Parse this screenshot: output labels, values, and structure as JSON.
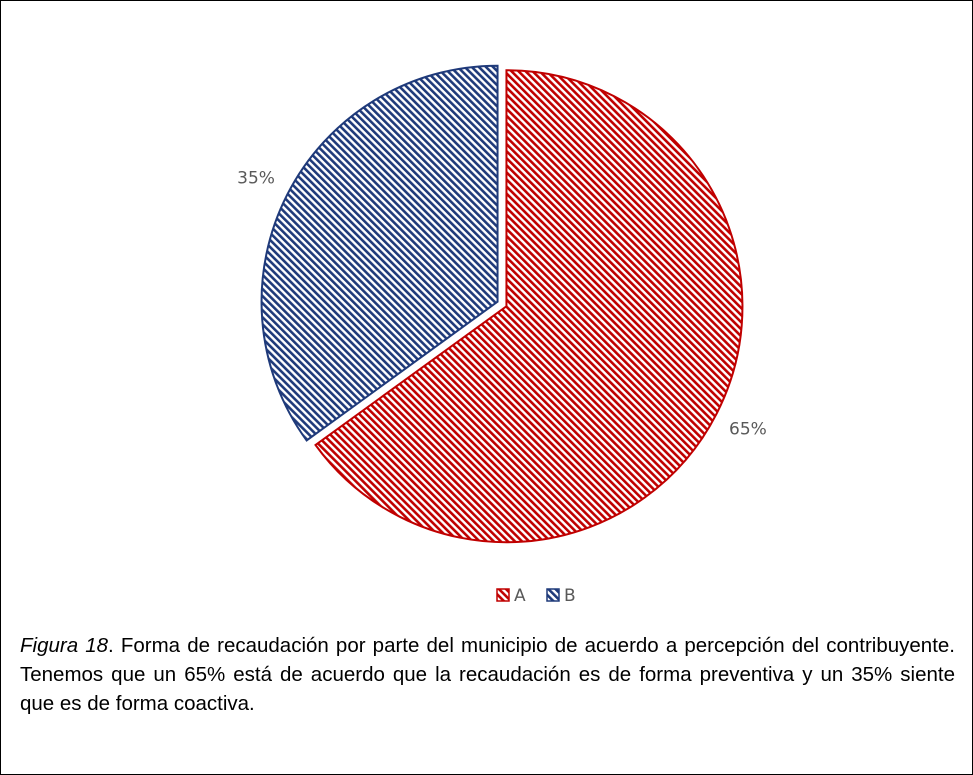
{
  "chart_data": {
    "type": "pie",
    "categories": [
      "A",
      "B"
    ],
    "values": [
      65,
      35
    ],
    "value_labels": [
      "65%",
      "35%"
    ],
    "colors": [
      "#c00000",
      "#1f3a7a"
    ],
    "legend": "bottom"
  },
  "caption": {
    "label": "Figura 18",
    "text": ". Forma de recaudación por parte del municipio de acuerdo a percepción del contribuyente. Tenemos que un 65% está de acuerdo que la recaudación es de forma preventiva y un 35% siente que es de forma coactiva."
  }
}
